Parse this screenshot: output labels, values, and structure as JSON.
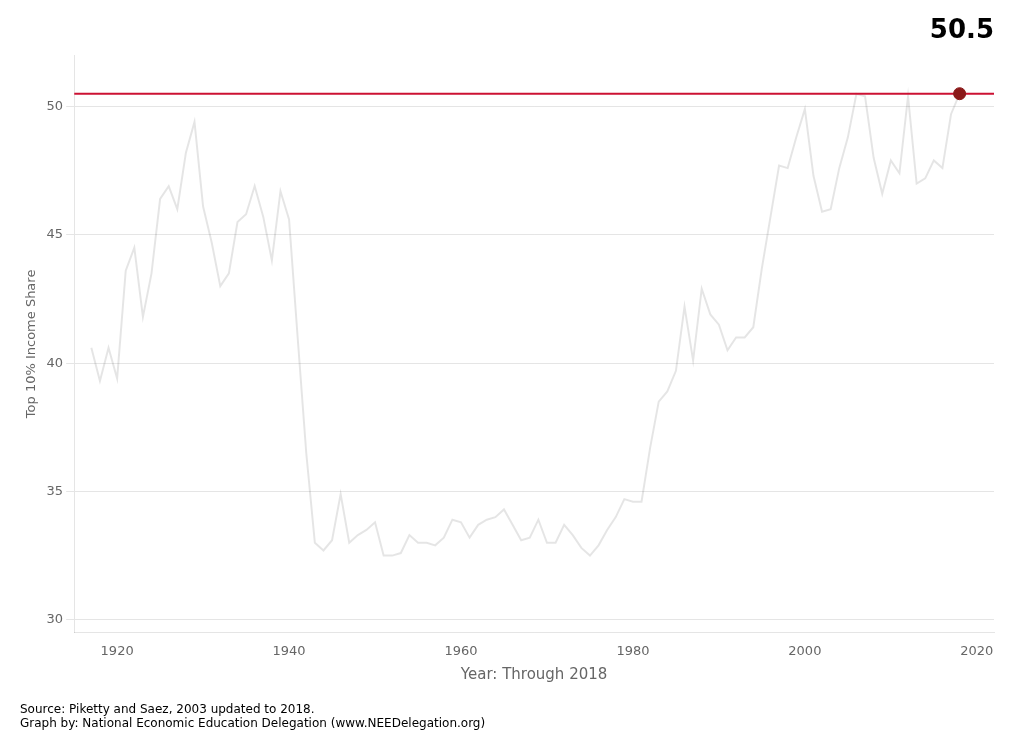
{
  "chart_data": {
    "type": "line",
    "annotation": "50.5",
    "xlabel": "Year: Through 2018",
    "ylabel": "Top 10% Income Share",
    "source_text": [
      "Source: Piketty and Saez, 2003 updated to 2018.",
      "Graph by: National Economic Education Delegation (www.NEEDelegation.org)"
    ],
    "x": [
      1917,
      1918,
      1919,
      1920,
      1921,
      1922,
      1923,
      1924,
      1925,
      1926,
      1927,
      1928,
      1929,
      1930,
      1931,
      1932,
      1933,
      1934,
      1935,
      1936,
      1937,
      1938,
      1939,
      1940,
      1941,
      1942,
      1943,
      1944,
      1945,
      1946,
      1947,
      1948,
      1949,
      1950,
      1951,
      1952,
      1953,
      1954,
      1955,
      1956,
      1957,
      1958,
      1959,
      1960,
      1961,
      1962,
      1963,
      1964,
      1965,
      1966,
      1967,
      1968,
      1969,
      1970,
      1971,
      1972,
      1973,
      1974,
      1975,
      1976,
      1977,
      1978,
      1979,
      1980,
      1981,
      1982,
      1983,
      1984,
      1985,
      1986,
      1987,
      1988,
      1989,
      1990,
      1991,
      1992,
      1993,
      1994,
      1995,
      1996,
      1997,
      1998,
      1999,
      2000,
      2001,
      2002,
      2003,
      2004,
      2005,
      2006,
      2007,
      2008,
      2009,
      2010,
      2011,
      2012,
      2013,
      2014,
      2015,
      2016,
      2017,
      2018
    ],
    "values": [
      40.6,
      39.3,
      40.6,
      39.4,
      43.6,
      44.5,
      41.8,
      43.5,
      46.4,
      46.9,
      46.0,
      48.2,
      49.4,
      46.1,
      44.7,
      43.0,
      43.5,
      45.5,
      45.8,
      46.9,
      45.7,
      44.0,
      46.7,
      45.6,
      41.0,
      36.5,
      33.0,
      32.7,
      33.1,
      34.9,
      33.0,
      33.3,
      33.5,
      33.8,
      32.5,
      32.5,
      32.6,
      33.3,
      33.0,
      33.0,
      32.9,
      33.2,
      33.9,
      33.8,
      33.2,
      33.7,
      33.9,
      34.0,
      34.3,
      33.7,
      33.1,
      33.2,
      33.9,
      33.0,
      33.0,
      33.7,
      33.3,
      32.8,
      32.5,
      32.9,
      33.5,
      34.0,
      34.7,
      34.6,
      34.6,
      36.7,
      38.5,
      38.9,
      39.7,
      42.2,
      40.1,
      42.9,
      41.9,
      41.5,
      40.5,
      41.0,
      41.0,
      41.4,
      43.7,
      45.7,
      47.7,
      47.6,
      48.8,
      49.9,
      47.3,
      45.9,
      46.0,
      47.6,
      48.8,
      50.5,
      50.4,
      48.0,
      46.6,
      47.9,
      47.4,
      50.4,
      47.0,
      47.2,
      47.9,
      47.6,
      49.7,
      50.5
    ],
    "reference_line": {
      "y": 50.5,
      "color": "#cc1133"
    },
    "highlight_point": {
      "x": 2018,
      "y": 50.5,
      "color": "#8b1a1a"
    },
    "xlim": [
      1915,
      2022
    ],
    "xticks": [
      1920,
      1940,
      1960,
      1980,
      2000,
      2020
    ],
    "ylim": [
      29.5,
      52.0
    ],
    "yticks": [
      30,
      35,
      40,
      45,
      50
    ],
    "grid": true
  }
}
